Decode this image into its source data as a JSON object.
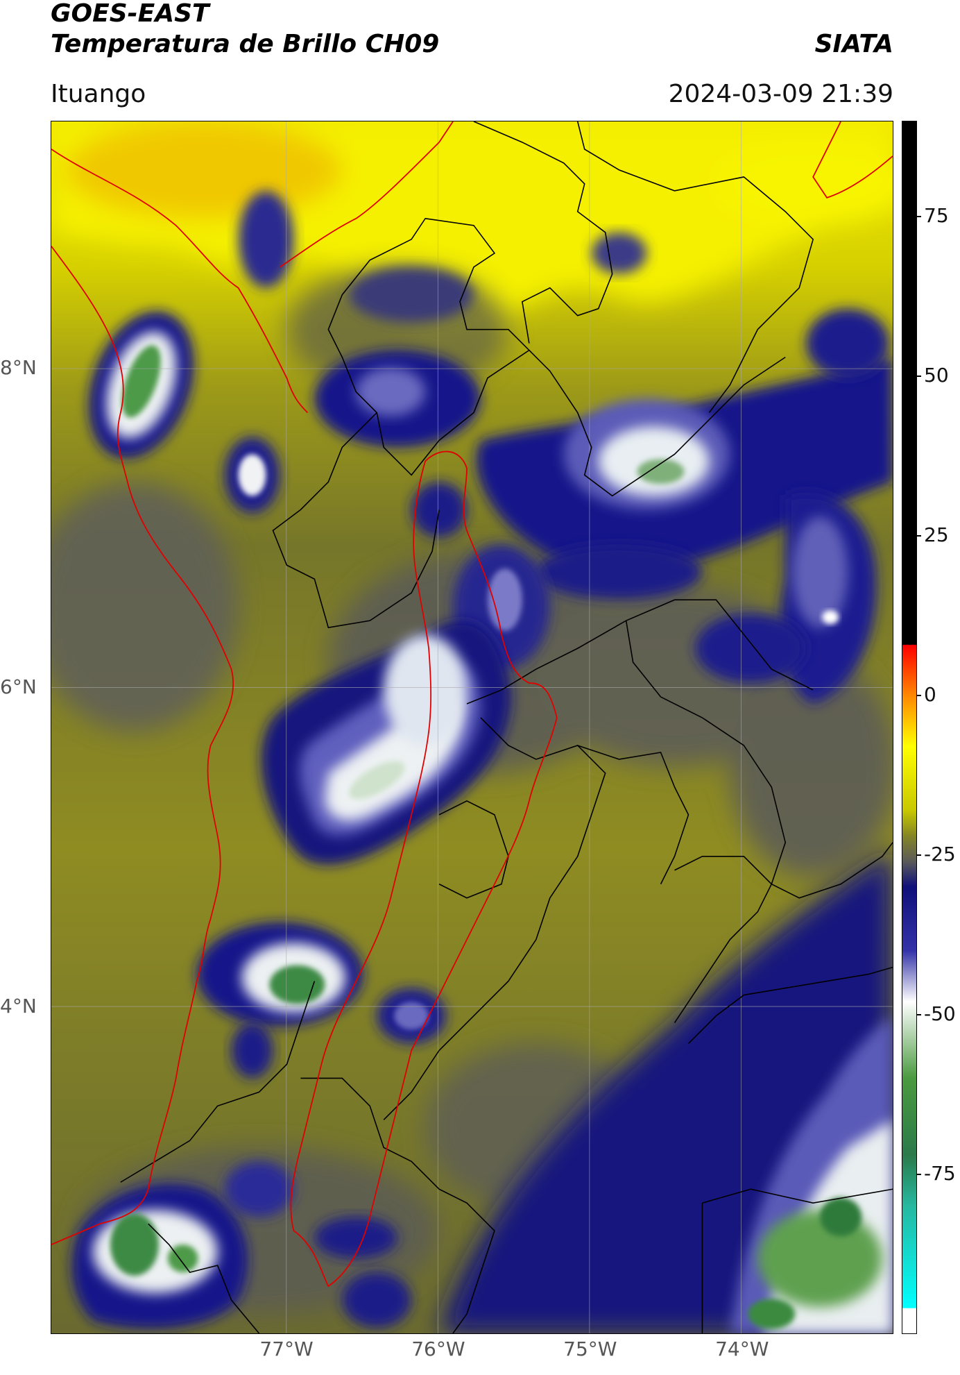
{
  "header": {
    "title_line1": "GOES-EAST",
    "title_line2": "Temperatura de Brillo CH09",
    "org": "SIATA",
    "region": "Ituango",
    "datetime": "2024-03-09 21:39"
  },
  "map": {
    "lon_ticks": [
      {
        "value": -77,
        "label": "77°W"
      },
      {
        "value": -76,
        "label": "76°W"
      },
      {
        "value": -75,
        "label": "75°W"
      },
      {
        "value": -74,
        "label": "74°W"
      }
    ],
    "lat_ticks": [
      {
        "value": 8,
        "label": "8°N"
      },
      {
        "value": 6,
        "label": "6°N"
      },
      {
        "value": 4,
        "label": "4°N"
      }
    ],
    "extent": {
      "lon_min": -78.55,
      "lon_max": -73.0,
      "lat_min": 1.95,
      "lat_max": 9.55
    },
    "colors": {
      "warm_yellow": "#f5f000",
      "olive": "#9a9a1e",
      "gray": "#5e5e5e",
      "cold_navy": "#1a1a8c",
      "cloud_white": "#e8eef0",
      "cloud_green": "#3f8f3a",
      "boundary_red": "#e00000",
      "boundary_black": "#000000"
    }
  },
  "colorbar": {
    "ticks": [
      "75",
      "50",
      "25",
      "0",
      "-25",
      "-50",
      "-75"
    ],
    "tick_values": [
      75,
      50,
      25,
      0,
      -25,
      -50,
      -75
    ],
    "range": [
      -100,
      90
    ],
    "stops": [
      {
        "value": 90,
        "color": "#000000"
      },
      {
        "value": 8,
        "color": "#000000"
      },
      {
        "value": 7.9,
        "color": "#ff0000"
      },
      {
        "value": 0,
        "color": "#ff8800"
      },
      {
        "value": -8,
        "color": "#ffff00"
      },
      {
        "value": -18,
        "color": "#c8c800"
      },
      {
        "value": -22,
        "color": "#858525"
      },
      {
        "value": -26,
        "color": "#5a5a5a"
      },
      {
        "value": -30,
        "color": "#10107a"
      },
      {
        "value": -40,
        "color": "#3333a8"
      },
      {
        "value": -48,
        "color": "#ffffff"
      },
      {
        "value": -60,
        "color": "#4a9a40"
      },
      {
        "value": -72,
        "color": "#2a7a4a"
      },
      {
        "value": -80,
        "color": "#26b8a0"
      },
      {
        "value": -96,
        "color": "#00ffff"
      },
      {
        "value": -96.1,
        "color": "#ffffff"
      },
      {
        "value": -100,
        "color": "#ffffff"
      }
    ]
  }
}
